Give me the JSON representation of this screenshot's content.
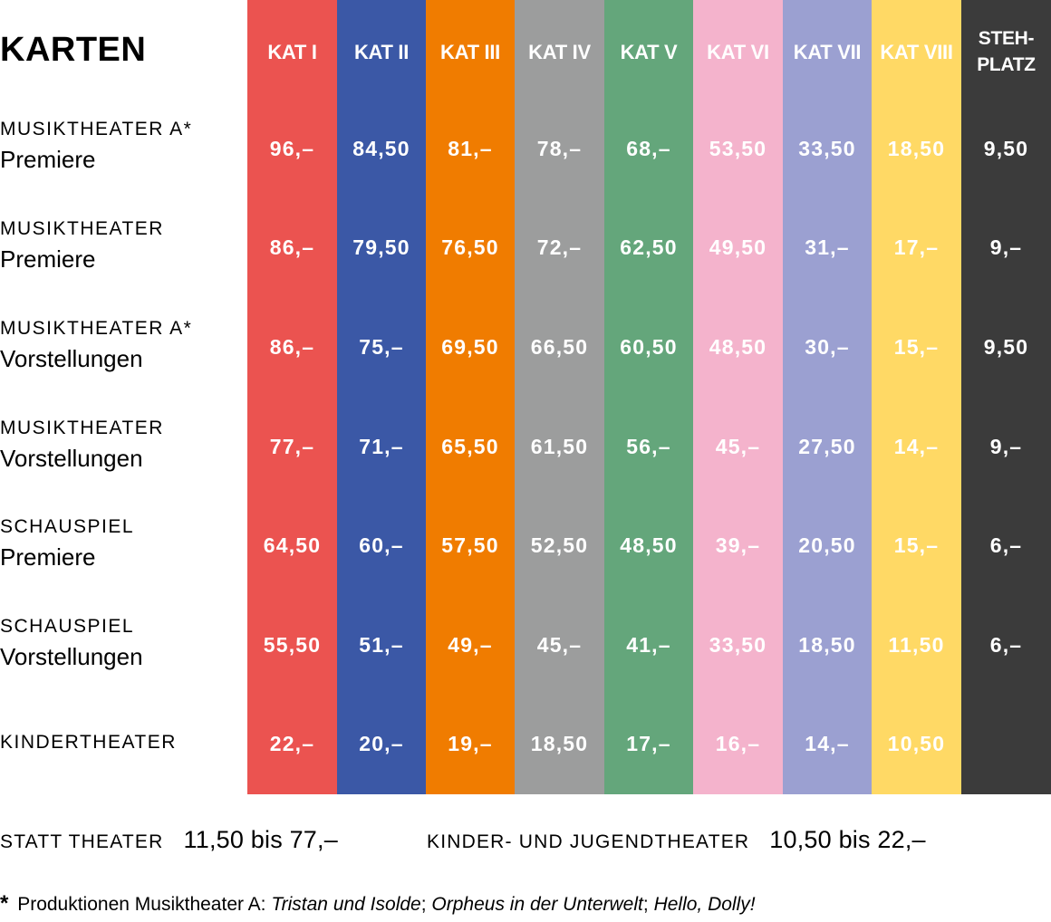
{
  "title": "KARTEN",
  "colors": {
    "KAT I": "#EB5350",
    "KAT II": "#3B58A6",
    "KAT III": "#F07C00",
    "KAT IV": "#9C9D9D",
    "KAT V": "#64A67B",
    "KAT VI": "#F4B3CC",
    "KAT VII": "#9BA0D1",
    "KAT VIII": "#FFD965",
    "STEH-PLATZ": "#3B3B3B"
  },
  "columns": [
    "KAT I",
    "KAT II",
    "KAT III",
    "KAT IV",
    "KAT V",
    "KAT VI",
    "KAT VII",
    "KAT VIII",
    "STEH-\nPLATZ"
  ],
  "rows": [
    {
      "category": "MUSIKTHEATER A*",
      "type": "Premiere",
      "prices": [
        "96,–",
        "84,50",
        "81,–",
        "78,–",
        "68,–",
        "53,50",
        "33,50",
        "18,50",
        "9,50"
      ]
    },
    {
      "category": "MUSIKTHEATER",
      "type": "Premiere",
      "prices": [
        "86,–",
        "79,50",
        "76,50",
        "72,–",
        "62,50",
        "49,50",
        "31,–",
        "17,–",
        "9,–"
      ]
    },
    {
      "category": "MUSIKTHEATER A*",
      "type": "Vorstellungen",
      "prices": [
        "86,–",
        "75,–",
        "69,50",
        "66,50",
        "60,50",
        "48,50",
        "30,–",
        "15,–",
        "9,50"
      ]
    },
    {
      "category": "MUSIKTHEATER",
      "type": "Vorstellungen",
      "prices": [
        "77,–",
        "71,–",
        "65,50",
        "61,50",
        "56,–",
        "45,–",
        "27,50",
        "14,–",
        "9,–"
      ]
    },
    {
      "category": "SCHAUSPIEL",
      "type": "Premiere",
      "prices": [
        "64,50",
        "60,–",
        "57,50",
        "52,50",
        "48,50",
        "39,–",
        "20,50",
        "15,–",
        "6,–"
      ]
    },
    {
      "category": "SCHAUSPIEL",
      "type": "Vorstellungen",
      "prices": [
        "55,50",
        "51,–",
        "49,–",
        "45,–",
        "41,–",
        "33,50",
        "18,50",
        "11,50",
        "6,–"
      ]
    },
    {
      "category": "KINDERTHEATER",
      "type": "",
      "prices": [
        "22,–",
        "20,–",
        "19,–",
        "18,50",
        "17,–",
        "16,–",
        "14,–",
        "10,50",
        ""
      ]
    }
  ],
  "summary": {
    "statt_label": "STATT THEATER",
    "statt_value": "11,50 bis 77,–",
    "kinder_label": "KINDER- UND JUGENDTHEATER",
    "kinder_value": "10,50 bis 22,–"
  },
  "footnote": {
    "star": "*",
    "prefix": "Produktionen Musiktheater A:",
    "works": [
      "Tristan und Isolde",
      "Orpheus in der Unterwelt",
      "Hello, Dolly!"
    ],
    "separator": ";"
  }
}
